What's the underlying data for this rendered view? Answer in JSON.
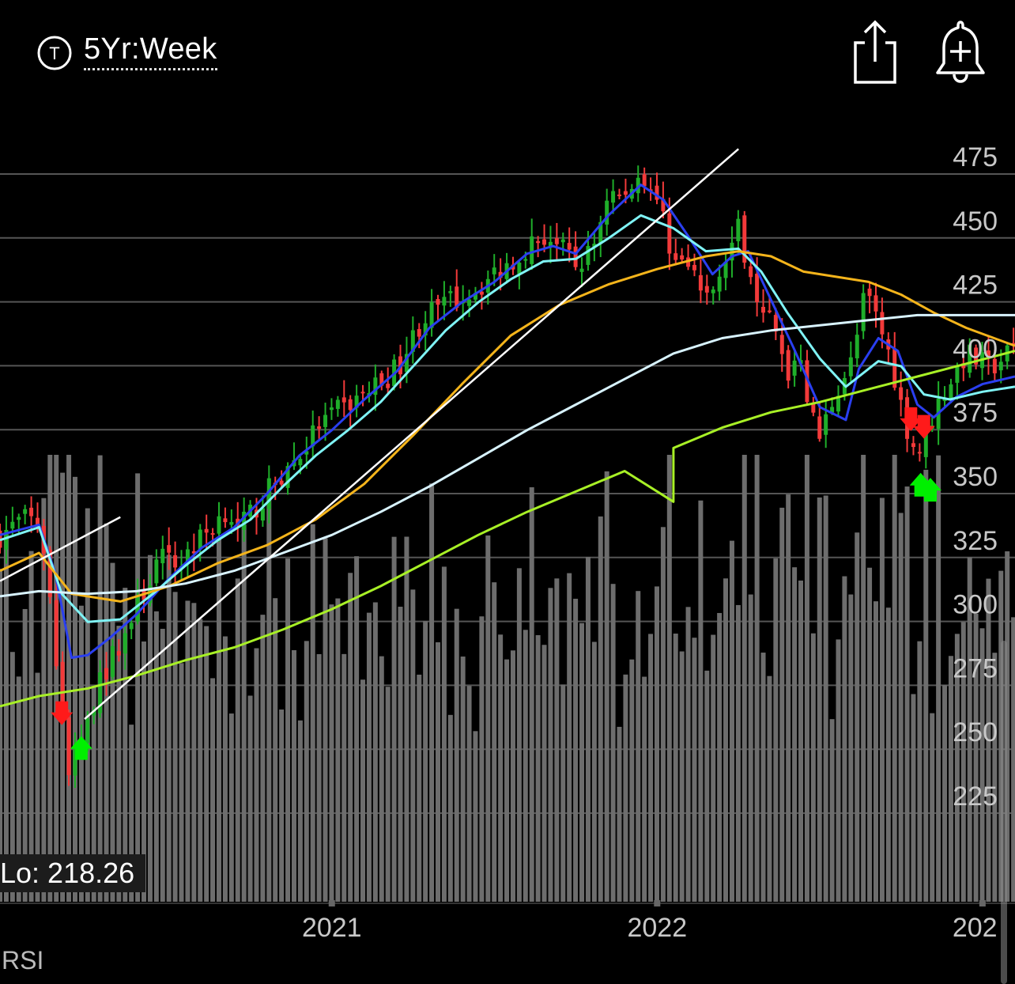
{
  "header": {
    "ticker_icon": "T",
    "timeframe_label": "5Yr:Week",
    "share_icon": "share-icon",
    "alert_icon": "bell-plus-icon"
  },
  "footer": {
    "lo_label": "Lo: 218.26",
    "indicator_label": "RSI"
  },
  "chart_data": {
    "type": "candlestick",
    "title": "",
    "y_ticks": [
      475,
      450,
      425,
      400,
      375,
      350,
      325,
      300,
      275,
      250,
      225
    ],
    "y_range": [
      218,
      478
    ],
    "x_ticks": [
      {
        "label": "2021",
        "year": 2021.0
      },
      {
        "label": "2022",
        "year": 2022.0
      },
      {
        "label": "202",
        "year": 2023.0
      }
    ],
    "x_range_years": [
      2019.98,
      2023.1
    ],
    "grid": true,
    "colors": {
      "up": "#1fae2a",
      "down": "#f23a3a",
      "ma_10": "#2a3ff0",
      "ma_20": "#7ff3f5",
      "ma_50": "#f4b41b",
      "ma_100": "#d8f3ff",
      "ma_200": "#a8f026",
      "volume": "#6d6d6d",
      "trendline": "#ffffff",
      "buy_signal": "#00f000",
      "sell_signal": "#ff1a1a"
    },
    "anchors": [
      [
        2019.98,
        327
      ],
      [
        2020.05,
        333
      ],
      [
        2020.1,
        332
      ],
      [
        2020.12,
        318
      ],
      [
        2020.15,
        280
      ],
      [
        2020.19,
        234
      ],
      [
        2020.22,
        242
      ],
      [
        2020.27,
        263
      ],
      [
        2020.32,
        278
      ],
      [
        2020.37,
        290
      ],
      [
        2020.42,
        304
      ],
      [
        2020.47,
        318
      ],
      [
        2020.52,
        315
      ],
      [
        2020.57,
        322
      ],
      [
        2020.63,
        330
      ],
      [
        2020.68,
        338
      ],
      [
        2020.71,
        328
      ],
      [
        2020.75,
        335
      ],
      [
        2020.83,
        348
      ],
      [
        2020.9,
        358
      ],
      [
        2020.96,
        370
      ],
      [
        2021.04,
        377
      ],
      [
        2021.12,
        384
      ],
      [
        2021.2,
        392
      ],
      [
        2021.28,
        412
      ],
      [
        2021.36,
        418
      ],
      [
        2021.45,
        424
      ],
      [
        2021.53,
        432
      ],
      [
        2021.6,
        440
      ],
      [
        2021.67,
        444
      ],
      [
        2021.75,
        432
      ],
      [
        2021.8,
        438
      ],
      [
        2021.85,
        462
      ],
      [
        2021.9,
        458
      ],
      [
        2021.95,
        470
      ],
      [
        2022.0,
        458
      ],
      [
        2022.04,
        440
      ],
      [
        2022.1,
        430
      ],
      [
        2022.16,
        418
      ],
      [
        2022.2,
        436
      ],
      [
        2022.25,
        446
      ],
      [
        2022.3,
        425
      ],
      [
        2022.35,
        410
      ],
      [
        2022.4,
        390
      ],
      [
        2022.44,
        400
      ],
      [
        2022.47,
        375
      ],
      [
        2022.5,
        365
      ],
      [
        2022.55,
        384
      ],
      [
        2022.6,
        395
      ],
      [
        2022.64,
        422
      ],
      [
        2022.68,
        410
      ],
      [
        2022.72,
        395
      ],
      [
        2022.76,
        372
      ],
      [
        2022.8,
        358
      ],
      [
        2022.85,
        375
      ],
      [
        2022.89,
        385
      ],
      [
        2022.95,
        398
      ],
      [
        2023.02,
        392
      ],
      [
        2023.1,
        400
      ]
    ],
    "moving_averages": [
      {
        "name": "MA 10",
        "color": "#2a3ff0",
        "points": [
          [
            2019.98,
            327
          ],
          [
            2020.1,
            331
          ],
          [
            2020.15,
            312
          ],
          [
            2020.2,
            279
          ],
          [
            2020.25,
            280
          ],
          [
            2020.32,
            287
          ],
          [
            2020.4,
            296
          ],
          [
            2020.5,
            310
          ],
          [
            2020.6,
            322
          ],
          [
            2020.7,
            330
          ],
          [
            2020.8,
            343
          ],
          [
            2020.9,
            358
          ],
          [
            2021.0,
            368
          ],
          [
            2021.1,
            380
          ],
          [
            2021.2,
            391
          ],
          [
            2021.3,
            408
          ],
          [
            2021.4,
            418
          ],
          [
            2021.5,
            426
          ],
          [
            2021.6,
            437
          ],
          [
            2021.68,
            440
          ],
          [
            2021.75,
            437
          ],
          [
            2021.85,
            452
          ],
          [
            2021.95,
            464
          ],
          [
            2022.02,
            458
          ],
          [
            2022.1,
            443
          ],
          [
            2022.17,
            429
          ],
          [
            2022.23,
            436
          ],
          [
            2022.28,
            438
          ],
          [
            2022.35,
            419
          ],
          [
            2022.42,
            400
          ],
          [
            2022.5,
            377
          ],
          [
            2022.58,
            372
          ],
          [
            2022.62,
            392
          ],
          [
            2022.68,
            404
          ],
          [
            2022.74,
            399
          ],
          [
            2022.8,
            378
          ],
          [
            2022.85,
            373
          ],
          [
            2022.92,
            381
          ],
          [
            2023.0,
            386
          ],
          [
            2023.1,
            389
          ]
        ]
      },
      {
        "name": "MA 20",
        "color": "#7ff3f5",
        "points": [
          [
            2019.98,
            325
          ],
          [
            2020.1,
            330
          ],
          [
            2020.17,
            304
          ],
          [
            2020.25,
            293
          ],
          [
            2020.35,
            294
          ],
          [
            2020.45,
            304
          ],
          [
            2020.55,
            315
          ],
          [
            2020.65,
            325
          ],
          [
            2020.75,
            333
          ],
          [
            2020.85,
            346
          ],
          [
            2020.95,
            358
          ],
          [
            2021.05,
            368
          ],
          [
            2021.15,
            379
          ],
          [
            2021.25,
            393
          ],
          [
            2021.35,
            407
          ],
          [
            2021.45,
            418
          ],
          [
            2021.55,
            427
          ],
          [
            2021.65,
            434
          ],
          [
            2021.75,
            435
          ],
          [
            2021.85,
            443
          ],
          [
            2021.95,
            452
          ],
          [
            2022.05,
            447
          ],
          [
            2022.15,
            438
          ],
          [
            2022.25,
            439
          ],
          [
            2022.32,
            430
          ],
          [
            2022.4,
            414
          ],
          [
            2022.5,
            396
          ],
          [
            2022.58,
            385
          ],
          [
            2022.68,
            395
          ],
          [
            2022.75,
            393
          ],
          [
            2022.82,
            382
          ],
          [
            2022.9,
            380
          ],
          [
            2023.0,
            383
          ],
          [
            2023.1,
            385
          ]
        ]
      },
      {
        "name": "MA 50",
        "color": "#f4b41b",
        "points": [
          [
            2019.98,
            313
          ],
          [
            2020.1,
            320
          ],
          [
            2020.2,
            304
          ],
          [
            2020.35,
            301
          ],
          [
            2020.5,
            307
          ],
          [
            2020.65,
            316
          ],
          [
            2020.8,
            323
          ],
          [
            2020.95,
            333
          ],
          [
            2021.1,
            347
          ],
          [
            2021.25,
            366
          ],
          [
            2021.4,
            386
          ],
          [
            2021.55,
            405
          ],
          [
            2021.7,
            417
          ],
          [
            2021.85,
            425
          ],
          [
            2022.0,
            431
          ],
          [
            2022.15,
            436
          ],
          [
            2022.25,
            438
          ],
          [
            2022.35,
            436
          ],
          [
            2022.45,
            430
          ],
          [
            2022.55,
            428
          ],
          [
            2022.65,
            426
          ],
          [
            2022.75,
            421
          ],
          [
            2022.85,
            414
          ],
          [
            2022.95,
            408
          ],
          [
            2023.1,
            401
          ]
        ]
      },
      {
        "name": "MA 100",
        "color": "#d8f3ff",
        "points": [
          [
            2019.98,
            303
          ],
          [
            2020.1,
            305
          ],
          [
            2020.25,
            304
          ],
          [
            2020.4,
            305
          ],
          [
            2020.55,
            308
          ],
          [
            2020.7,
            313
          ],
          [
            2020.85,
            320
          ],
          [
            2021.0,
            327
          ],
          [
            2021.15,
            336
          ],
          [
            2021.3,
            346
          ],
          [
            2021.45,
            357
          ],
          [
            2021.6,
            368
          ],
          [
            2021.75,
            378
          ],
          [
            2021.9,
            388
          ],
          [
            2022.05,
            398
          ],
          [
            2022.2,
            404
          ],
          [
            2022.35,
            407
          ],
          [
            2022.5,
            409
          ],
          [
            2022.65,
            411
          ],
          [
            2022.8,
            413
          ],
          [
            2022.95,
            413
          ],
          [
            2023.1,
            413
          ]
        ]
      },
      {
        "name": "MA 200",
        "color": "#a8f026",
        "points": [
          [
            2019.98,
            260
          ],
          [
            2020.1,
            264
          ],
          [
            2020.25,
            267
          ],
          [
            2020.4,
            272
          ],
          [
            2020.55,
            278
          ],
          [
            2020.7,
            283
          ],
          [
            2020.85,
            290
          ],
          [
            2021.0,
            298
          ],
          [
            2021.15,
            307
          ],
          [
            2021.3,
            317
          ],
          [
            2021.45,
            327
          ],
          [
            2021.6,
            336
          ],
          [
            2021.75,
            344
          ],
          [
            2021.9,
            352
          ],
          [
            2022.05,
            340
          ],
          [
            2022.05,
            340
          ],
          [
            2022.05,
            361
          ],
          [
            2022.2,
            369
          ],
          [
            2022.35,
            375
          ],
          [
            2022.5,
            379
          ],
          [
            2022.65,
            384
          ],
          [
            2022.8,
            389
          ],
          [
            2022.95,
            394
          ],
          [
            2023.1,
            399
          ]
        ]
      }
    ],
    "trendlines": [
      {
        "from": [
          2020.24,
          255
        ],
        "to": [
          2022.25,
          478
        ]
      },
      {
        "from": [
          2019.98,
          309
        ],
        "to": [
          2020.35,
          334
        ]
      }
    ],
    "signals": [
      {
        "type": "sell",
        "year": 2020.17,
        "price": 257
      },
      {
        "type": "buy",
        "year": 2020.23,
        "price": 244
      },
      {
        "type": "sell",
        "year": 2022.78,
        "price": 372
      },
      {
        "type": "sell",
        "year": 2022.82,
        "price": 369
      },
      {
        "type": "buy",
        "year": 2022.81,
        "price": 347
      },
      {
        "type": "buy",
        "year": 2022.84,
        "price": 345
      }
    ],
    "volume_highlights": [
      {
        "year": 2020.15,
        "relative": 1.0
      },
      {
        "year": 2020.17,
        "relative": 0.96
      },
      {
        "year": 2022.05,
        "relative": 0.6
      }
    ]
  }
}
